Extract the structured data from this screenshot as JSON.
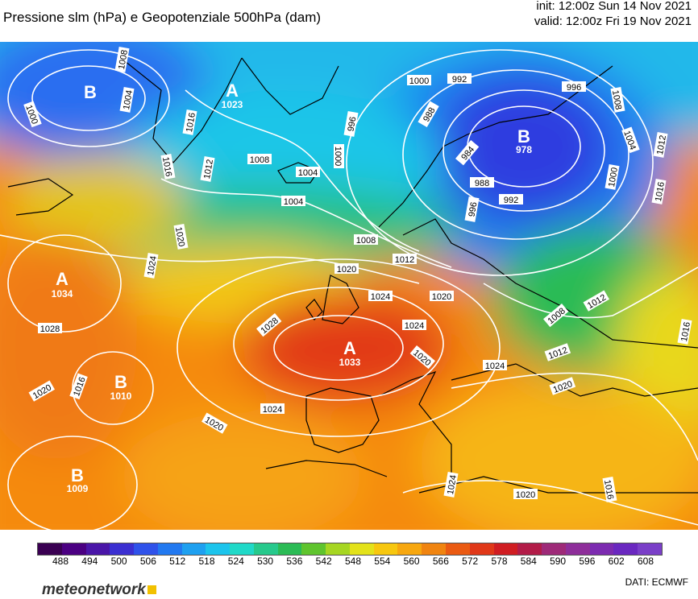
{
  "header": {
    "title": "Pressione slm (hPa) e Geopotenziale 500hPa (dam)",
    "init": "init: 12:00z Sun 14 Nov 2021",
    "valid": "valid: 12:00z Fri 19 Nov 2021"
  },
  "centers": [
    {
      "type": "B",
      "value": "",
      "color": "#ffffff"
    },
    {
      "type": "A",
      "value": "1023",
      "color": "#ffffff"
    },
    {
      "type": "B",
      "value": "978",
      "color": "#ffffff"
    },
    {
      "type": "A",
      "value": "1034",
      "color": "#ffffff"
    },
    {
      "type": "A",
      "value": "1033",
      "color": "#ffffff"
    },
    {
      "type": "B",
      "value": "1010",
      "color": "#ffffff"
    },
    {
      "type": "B",
      "value": "1009",
      "color": "#ffffff"
    }
  ],
  "isobar_labels": [
    "1008",
    "1004",
    "1000",
    "1016",
    "1016",
    "1012",
    "1008",
    "1004",
    "1004",
    "996",
    "1000",
    "988",
    "992",
    "984",
    "988",
    "996",
    "992",
    "1000",
    "996",
    "1008",
    "1004",
    "1000",
    "1012",
    "1016",
    "1020",
    "1024",
    "1008",
    "1012",
    "1020",
    "1012",
    "1024",
    "1028",
    "1028",
    "1024",
    "1020",
    "1016",
    "1020",
    "1024",
    "1020",
    "1008",
    "1012",
    "1024",
    "1020",
    "1020",
    "1024",
    "1020",
    "1016",
    "1016"
  ],
  "scale": {
    "labels": [
      "488",
      "494",
      "500",
      "506",
      "512",
      "518",
      "524",
      "530",
      "536",
      "542",
      "548",
      "554",
      "560",
      "566",
      "572",
      "578",
      "584",
      "590",
      "596",
      "602",
      "608"
    ],
    "colors": [
      "#3a0052",
      "#4b0082",
      "#4a16a8",
      "#3b2fd1",
      "#2f52ea",
      "#2279f0",
      "#1ea0f0",
      "#1cc4ec",
      "#20d9c8",
      "#27c98c",
      "#2bbb55",
      "#5fc42e",
      "#a6d622",
      "#e3e21a",
      "#f7c70f",
      "#f7a70f",
      "#f08410",
      "#ea5a12",
      "#e03818",
      "#d01d22",
      "#b21c48",
      "#9e2a78",
      "#8e2e9a",
      "#7c2bb0",
      "#6a28c0",
      "#7a3fc8"
    ]
  },
  "footer": {
    "logo": "meteonetwork",
    "source": "DATI: ECMWF"
  }
}
